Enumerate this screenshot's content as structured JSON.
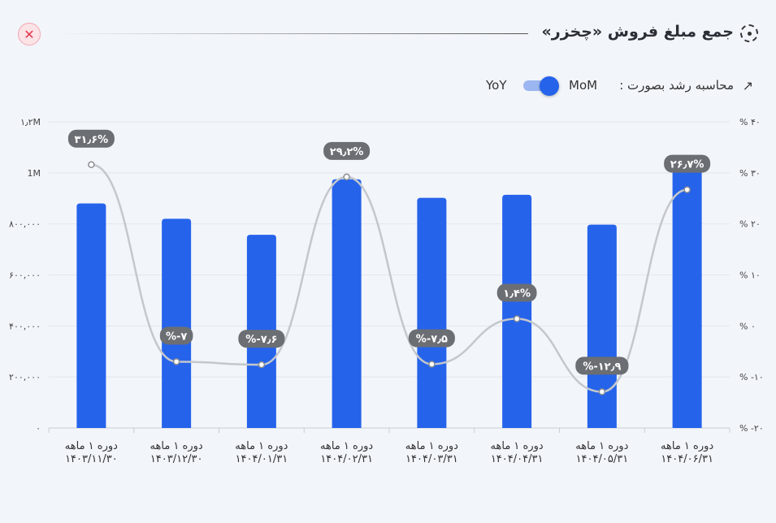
{
  "header": {
    "title": "جمع مبلغ فروش «چخزر»",
    "close_icon": "close-icon",
    "title_icon": "target-icon"
  },
  "controls": {
    "growth_label": "محاسبه رشد بصورت :",
    "mode_selected": "MoM",
    "mode_other": "YoY",
    "growth_icon": "trend-up-icon"
  },
  "colors": {
    "bar": "#2563eb",
    "line": "#c4c7cc",
    "badge": "#6b6e73",
    "grid": "#e3e7ee"
  },
  "chart_data": {
    "type": "bar",
    "categories": [
      [
        "دوره ۱ ماهه",
        "۱۴۰۳/۱۱/۳۰"
      ],
      [
        "دوره ۱ ماهه",
        "۱۴۰۳/۱۲/۳۰"
      ],
      [
        "دوره ۱ ماهه",
        "۱۴۰۴/۰۱/۳۱"
      ],
      [
        "دوره ۱ ماهه",
        "۱۴۰۴/۰۲/۳۱"
      ],
      [
        "دوره ۱ ماهه",
        "۱۴۰۴/۰۳/۳۱"
      ],
      [
        "دوره ۱ ماهه",
        "۱۴۰۴/۰۴/۳۱"
      ],
      [
        "دوره ۱ ماهه",
        "۱۴۰۴/۰۵/۳۱"
      ],
      [
        "دوره ۱ ماهه",
        "۱۴۰۴/۰۶/۳۱"
      ]
    ],
    "series": [
      {
        "type": "bar",
        "axis": "left",
        "values": [
          880000,
          820000,
          757000,
          975000,
          902000,
          914000,
          797000,
          1010000
        ]
      },
      {
        "type": "line",
        "axis": "right",
        "values": [
          31.6,
          -7,
          -7.6,
          29.2,
          -7.5,
          1.4,
          -12.9,
          26.7
        ],
        "labels": [
          "۳۱٫۶%",
          "%-۷",
          "%-۷٫۶",
          "۲۹٫۲%",
          "%-۷٫۵",
          "۱٫۴%",
          "%-۱۲٫۹",
          "۲۶٫۷%"
        ]
      }
    ],
    "ylim_left": [
      0,
      1200000
    ],
    "ylim_right": [
      -20,
      40
    ],
    "yticks_left": [
      "۰",
      "۲۰۰,۰۰۰",
      "۴۰۰,۰۰۰",
      "۶۰۰,۰۰۰",
      "۸۰۰,۰۰۰",
      "1M",
      "۱٫۲M"
    ],
    "yticks_right": [
      "% -۲۰",
      "% -۱۰",
      "% ۰",
      "% ۱۰",
      "% ۲۰",
      "% ۳۰",
      "% ۴۰"
    ],
    "grid": true
  }
}
